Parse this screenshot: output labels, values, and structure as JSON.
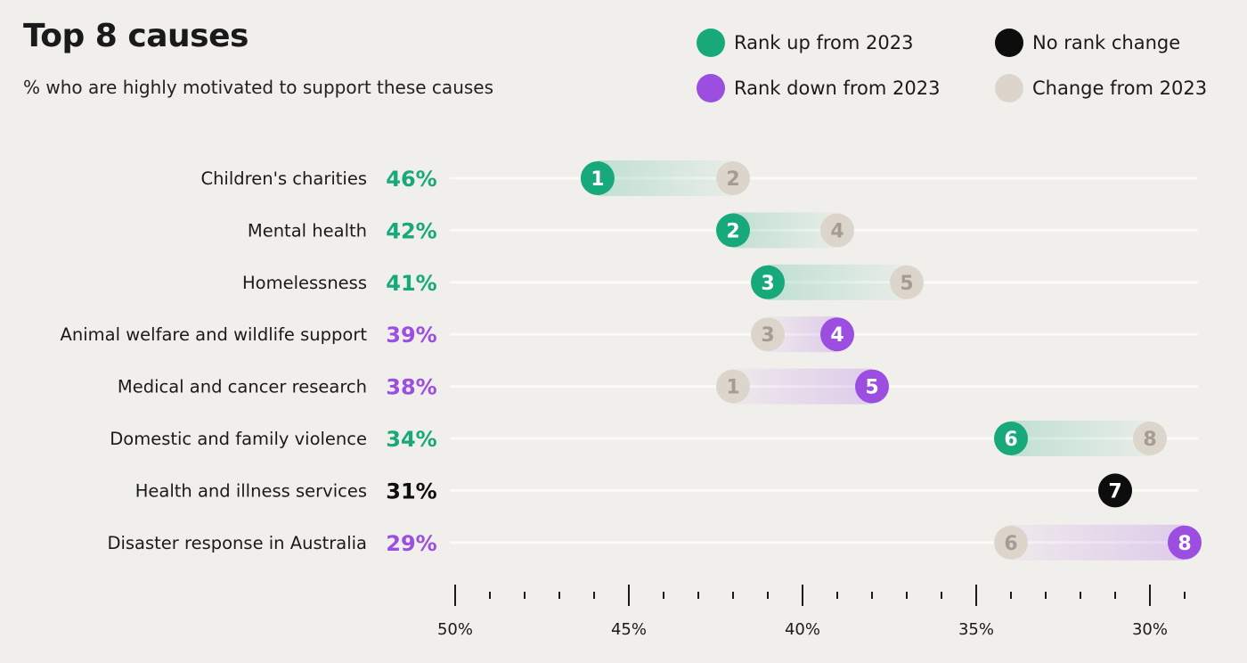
{
  "title": "Top 8 causes",
  "subtitle": "% who are highly motivated to support these causes",
  "colors": {
    "up": "#17a97a",
    "down": "#9b4ee0",
    "none": "#0d0d0d",
    "change": "#dcd5cc",
    "change_text": "#a49d96",
    "guide": "#fbfaf8"
  },
  "legend": [
    {
      "label": "Rank up from 2023",
      "color": "#17a97a"
    },
    {
      "label": "No rank change",
      "color": "#0d0d0d"
    },
    {
      "label": "Rank down from 2023",
      "color": "#9b4ee0"
    },
    {
      "label": "Change from 2023",
      "color": "#dcd5cc"
    }
  ],
  "chart_data": {
    "type": "dumbbell",
    "x_axis": {
      "range": [
        50,
        28.5
      ],
      "reversed": true,
      "tick_labels": [
        "50%",
        "45%",
        "40%",
        "35%",
        "30%"
      ],
      "major_ticks": [
        50,
        45,
        40,
        35,
        30
      ],
      "minor_step": 1
    },
    "rows": [
      {
        "category": "Children's charities",
        "value_label": "46%",
        "rank_2024": 1,
        "rank_2023": 2,
        "pos_2024": 45.9,
        "pos_2023": 42.0,
        "direction": "up"
      },
      {
        "category": "Mental health",
        "value_label": "42%",
        "rank_2024": 2,
        "rank_2023": 4,
        "pos_2024": 42.0,
        "pos_2023": 39.0,
        "direction": "up"
      },
      {
        "category": "Homelessness",
        "value_label": "41%",
        "rank_2024": 3,
        "rank_2023": 5,
        "pos_2024": 41.0,
        "pos_2023": 37.0,
        "direction": "up"
      },
      {
        "category": "Animal welfare and wildlife support",
        "value_label": "39%",
        "rank_2024": 4,
        "rank_2023": 3,
        "pos_2024": 39.0,
        "pos_2023": 41.0,
        "direction": "down"
      },
      {
        "category": "Medical and cancer research",
        "value_label": "38%",
        "rank_2024": 5,
        "rank_2023": 1,
        "pos_2024": 38.0,
        "pos_2023": 42.0,
        "direction": "down"
      },
      {
        "category": "Domestic and family violence",
        "value_label": "34%",
        "rank_2024": 6,
        "rank_2023": 8,
        "pos_2024": 34.0,
        "pos_2023": 30.0,
        "direction": "up"
      },
      {
        "category": "Health and illness services",
        "value_label": "31%",
        "rank_2024": 7,
        "rank_2023": null,
        "pos_2024": 31.0,
        "pos_2023": null,
        "direction": "none"
      },
      {
        "category": "Disaster response in Australia",
        "value_label": "29%",
        "rank_2024": 8,
        "rank_2023": 6,
        "pos_2024": 29.0,
        "pos_2023": 34.0,
        "direction": "down"
      }
    ]
  }
}
